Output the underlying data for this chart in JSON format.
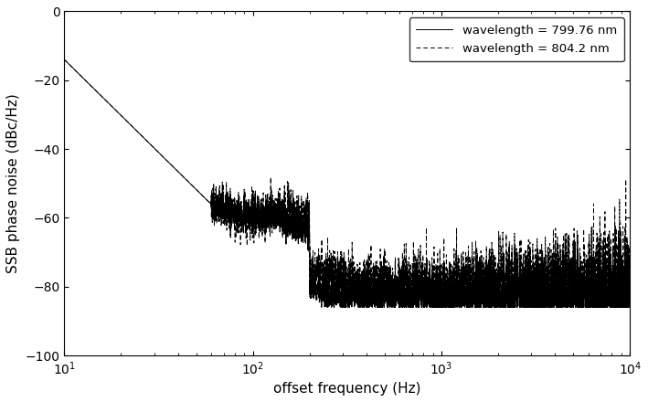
{
  "xlabel": "offset frequency (Hz)",
  "ylabel": "SSB phase noise (dBc/Hz)",
  "xlim": [
    10,
    10000
  ],
  "ylim": [
    -100,
    0
  ],
  "yticks": [
    0,
    -20,
    -40,
    -60,
    -80,
    -100
  ],
  "legend_entries": [
    "wavelength = 799.76 nm",
    "wavelength = 804.2 nm"
  ],
  "line_color": "#000000",
  "background_color": "#ffffff",
  "legend_fontsize": 9.5,
  "axis_fontsize": 11,
  "start_val": -14,
  "noise_floor1": -83,
  "noise_floor2": -79,
  "noise_std1": 1.5,
  "noise_std2": 2.5
}
